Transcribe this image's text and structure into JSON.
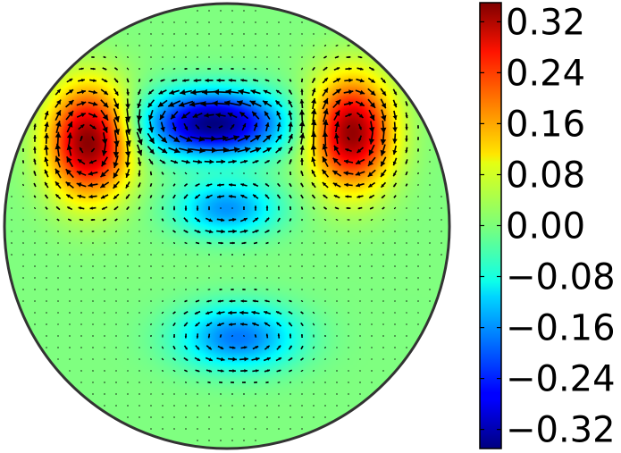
{
  "chart_data": {
    "type": "heatmap",
    "title": "",
    "xlabel": "",
    "ylabel": "",
    "domain_shape": "disk",
    "colormap": "jet",
    "overlay": "vector-field (quiver arrows)",
    "grid": false,
    "colorbar": {
      "placement": "right",
      "range": [
        -0.35,
        0.35
      ],
      "ticks": [
        -0.32,
        -0.24,
        -0.16,
        -0.08,
        0.0,
        0.08,
        0.16,
        0.24,
        0.32
      ],
      "tick_labels": [
        "−0.32",
        "−0.24",
        "−0.16",
        "−0.08",
        "0.00",
        "0.08",
        "0.16",
        "0.24",
        "0.32"
      ]
    },
    "features": [
      {
        "kind": "max",
        "x": -0.62,
        "y": 0.38,
        "value": 0.35
      },
      {
        "kind": "max",
        "x": 0.56,
        "y": 0.42,
        "value": 0.34
      },
      {
        "kind": "min",
        "x": -0.06,
        "y": 0.46,
        "value": -0.35
      },
      {
        "kind": "min",
        "x": 0.05,
        "y": -0.5,
        "value": -0.18
      },
      {
        "kind": "min",
        "x": 0.0,
        "y": 0.08,
        "value": -0.16
      }
    ]
  }
}
